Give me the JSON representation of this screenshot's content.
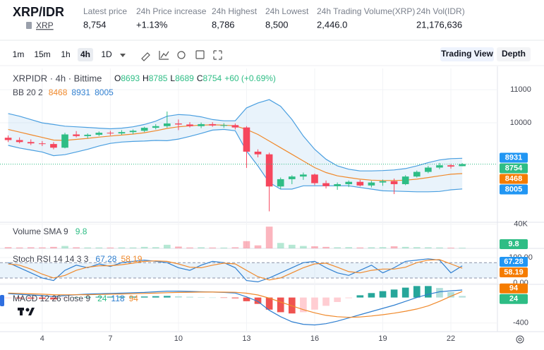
{
  "header": {
    "pair": "XRP/IDR",
    "asset": "XRP",
    "stats": [
      {
        "label": "Latest price",
        "value": "8,754"
      },
      {
        "label": "24h Price increase",
        "value": "+1.13%"
      },
      {
        "label": "24h Highest",
        "value": "8,786"
      },
      {
        "label": "24h Lowest",
        "value": "8,500"
      },
      {
        "label": "24h Trading Volume(XRP)",
        "value": "2,446.0"
      },
      {
        "label": "24h Vol(IDR)",
        "value": "21,176,636"
      }
    ]
  },
  "toolbar": {
    "intervals": [
      "1m",
      "15m",
      "1h",
      "4h",
      "1D"
    ],
    "active": "4h",
    "views": [
      "Trading View",
      "Depth"
    ]
  },
  "chart_data": [
    {
      "type": "candlestick",
      "title": "XRPIDR · 4h · Bittime",
      "ohlc_labels": {
        "open": "O",
        "high": "H",
        "low": "L",
        "close": "C"
      },
      "change": "+60 (+0.69%)",
      "up_color": "#2ebd85",
      "down_color": "#f6465d",
      "x": [
        2.5,
        3,
        3.5,
        4,
        4.5,
        5,
        5.5,
        6,
        6.5,
        7,
        7.5,
        8,
        8.5,
        9,
        9.5,
        10,
        10.5,
        11,
        11.5,
        12,
        12.5,
        13,
        13.5,
        14,
        14.5,
        15,
        15.5,
        16,
        16.5,
        17,
        17.5,
        18,
        18.5,
        19,
        19.5,
        20,
        20.5,
        21,
        21.5,
        22,
        22.5
      ],
      "open": [
        9550,
        9480,
        9420,
        9380,
        9360,
        9250,
        9650,
        9600,
        9640,
        9700,
        9680,
        9720,
        9760,
        9850,
        9900,
        9980,
        9950,
        9900,
        9960,
        9920,
        9930,
        9860,
        9130,
        9050,
        8080,
        8300,
        8380,
        8440,
        8180,
        8090,
        8150,
        8220,
        8110,
        8200,
        8240,
        8150,
        8380,
        8520,
        8650,
        8720,
        8693
      ],
      "high": [
        9620,
        9560,
        9500,
        9450,
        9420,
        9700,
        9750,
        9680,
        9740,
        9760,
        9780,
        9800,
        9880,
        9960,
        10340,
        10100,
        10020,
        10010,
        10020,
        9990,
        9980,
        9900,
        9200,
        9100,
        8350,
        8420,
        8500,
        8470,
        8260,
        8200,
        8260,
        8280,
        8250,
        8290,
        8320,
        8420,
        8560,
        8700,
        8790,
        8760,
        8785
      ],
      "low": [
        9420,
        9380,
        9330,
        9300,
        9200,
        9230,
        9560,
        9530,
        9600,
        9620,
        9640,
        9660,
        9720,
        9800,
        9850,
        9780,
        9860,
        9840,
        9880,
        9850,
        9800,
        8640,
        8960,
        7330,
        8000,
        8150,
        8280,
        8120,
        8020,
        7980,
        8060,
        8080,
        8050,
        8100,
        7850,
        8120,
        8350,
        8480,
        8600,
        8620,
        8689
      ],
      "close": [
        9480,
        9420,
        9380,
        9360,
        9250,
        9650,
        9600,
        9640,
        9700,
        9680,
        9720,
        9760,
        9850,
        9900,
        9980,
        9950,
        9900,
        9960,
        9920,
        9930,
        9860,
        9130,
        9050,
        8080,
        8300,
        8380,
        8440,
        8180,
        8090,
        8150,
        8220,
        8110,
        8200,
        8240,
        8150,
        8380,
        8520,
        8650,
        8720,
        8680,
        8754
      ],
      "indicator": "BB 20 2",
      "band_color": "#4a9fe0",
      "basis_color": "#f0892b",
      "bands": {
        "upper": [
          10280,
          10200,
          10100,
          10000,
          9950,
          9900,
          9880,
          9860,
          9840,
          9820,
          9840,
          9880,
          9950,
          10050,
          10200,
          10250,
          10230,
          10180,
          10100,
          10060,
          10060,
          10450,
          10600,
          10700,
          10500,
          10100,
          9600,
          9200,
          8900,
          8700,
          8600,
          8550,
          8550,
          8560,
          8580,
          8620,
          8700,
          8800,
          8880,
          8920,
          8931
        ],
        "basis": [
          9800,
          9720,
          9640,
          9560,
          9480,
          9470,
          9500,
          9530,
          9570,
          9600,
          9630,
          9660,
          9700,
          9760,
          9830,
          9880,
          9910,
          9930,
          9940,
          9930,
          9910,
          9800,
          9650,
          9450,
          9250,
          9050,
          8850,
          8650,
          8500,
          8400,
          8350,
          8300,
          8270,
          8260,
          8260,
          8270,
          8300,
          8350,
          8400,
          8450,
          8468
        ],
        "lower": [
          9320,
          9240,
          9180,
          9120,
          9010,
          9040,
          9120,
          9200,
          9300,
          9380,
          9420,
          9440,
          9450,
          9470,
          9460,
          9510,
          9590,
          9680,
          9780,
          9800,
          9760,
          9150,
          8700,
          8200,
          8000,
          8000,
          8100,
          8100,
          8100,
          8100,
          8100,
          8050,
          8000,
          7950,
          7940,
          7930,
          7920,
          7920,
          7930,
          7980,
          8005
        ]
      },
      "xlim": [
        2.14,
        24.05
      ],
      "xticks": [
        4,
        7,
        10,
        13,
        16,
        19,
        22
      ],
      "ylim": [
        7000,
        11640
      ],
      "yticks": [
        10000,
        11000
      ]
    },
    {
      "type": "bar",
      "title": "Volume SMA 9",
      "sma": 9.8,
      "values": [
        2000,
        1500,
        1800,
        1600,
        2500,
        4000,
        1800,
        1500,
        1500,
        1400,
        1600,
        1500,
        2500,
        2000,
        6000,
        3000,
        1500,
        1800,
        1400,
        1300,
        1800,
        12000,
        5000,
        36000,
        9000,
        6000,
        4000,
        3500,
        2500,
        1800,
        2000,
        1500,
        1800,
        2000,
        3500,
        2500,
        2000,
        1800,
        1500,
        1200,
        1000
      ],
      "ylim": [
        0,
        42000
      ],
      "yticks": [
        {
          "value": 40000,
          "label": "40K"
        }
      ]
    },
    {
      "type": "line",
      "title": "Stoch RSI 14 14 3 3",
      "k_color": "#2f7fd0",
      "d_color": "#f0892b",
      "k": [
        80,
        60,
        40,
        20,
        10,
        50,
        70,
        60,
        75,
        65,
        80,
        85,
        90,
        85,
        80,
        60,
        50,
        70,
        85,
        80,
        60,
        10,
        5,
        20,
        40,
        60,
        80,
        85,
        60,
        40,
        30,
        50,
        70,
        40,
        60,
        85,
        90,
        95,
        90,
        40,
        67.28
      ],
      "d": [
        75,
        70,
        55,
        35,
        20,
        30,
        50,
        62,
        68,
        68,
        72,
        78,
        85,
        87,
        85,
        75,
        62,
        60,
        70,
        78,
        75,
        50,
        25,
        12,
        20,
        40,
        60,
        75,
        78,
        62,
        45,
        40,
        50,
        55,
        55,
        62,
        80,
        90,
        92,
        75,
        58.19
      ],
      "levels": [
        20,
        80
      ],
      "ylim": [
        -5,
        133
      ],
      "yticks": [
        {
          "value": 100,
          "label": "100.00"
        },
        {
          "value": 0,
          "label": "0.00"
        }
      ]
    },
    {
      "type": "macd",
      "title": "MACD 12 26 close 9",
      "macd_color": "#2f7fd0",
      "signal_color": "#f0892b",
      "histogram": [
        -10,
        -15,
        -18,
        -22,
        -30,
        -12,
        2,
        10,
        12,
        13,
        14,
        15,
        16,
        21,
        25,
        20,
        12,
        5,
        0,
        -4,
        -12,
        -58,
        -100,
        -190,
        -230,
        -250,
        -230,
        -190,
        -130,
        -70,
        -10,
        35,
        70,
        100,
        125,
        155,
        180,
        180,
        150,
        85,
        24
      ],
      "macd": [
        60,
        50,
        40,
        30,
        15,
        30,
        45,
        55,
        60,
        65,
        70,
        75,
        80,
        90,
        100,
        100,
        95,
        90,
        85,
        80,
        70,
        10,
        -60,
        -200,
        -300,
        -380,
        -420,
        -430,
        -410,
        -370,
        -320,
        -270,
        -220,
        -170,
        -120,
        -60,
        0,
        50,
        90,
        105,
        118
      ],
      "signal": [
        70,
        65,
        58,
        52,
        45,
        42,
        43,
        45,
        48,
        52,
        56,
        60,
        64,
        69,
        75,
        80,
        83,
        85,
        85,
        84,
        82,
        68,
        40,
        -10,
        -70,
        -130,
        -190,
        -240,
        -280,
        -300,
        -310,
        -305,
        -290,
        -270,
        -245,
        -215,
        -180,
        -130,
        -60,
        20,
        94
      ],
      "ylim": [
        -535,
        195
      ],
      "yticks": [
        -400
      ]
    }
  ]
}
